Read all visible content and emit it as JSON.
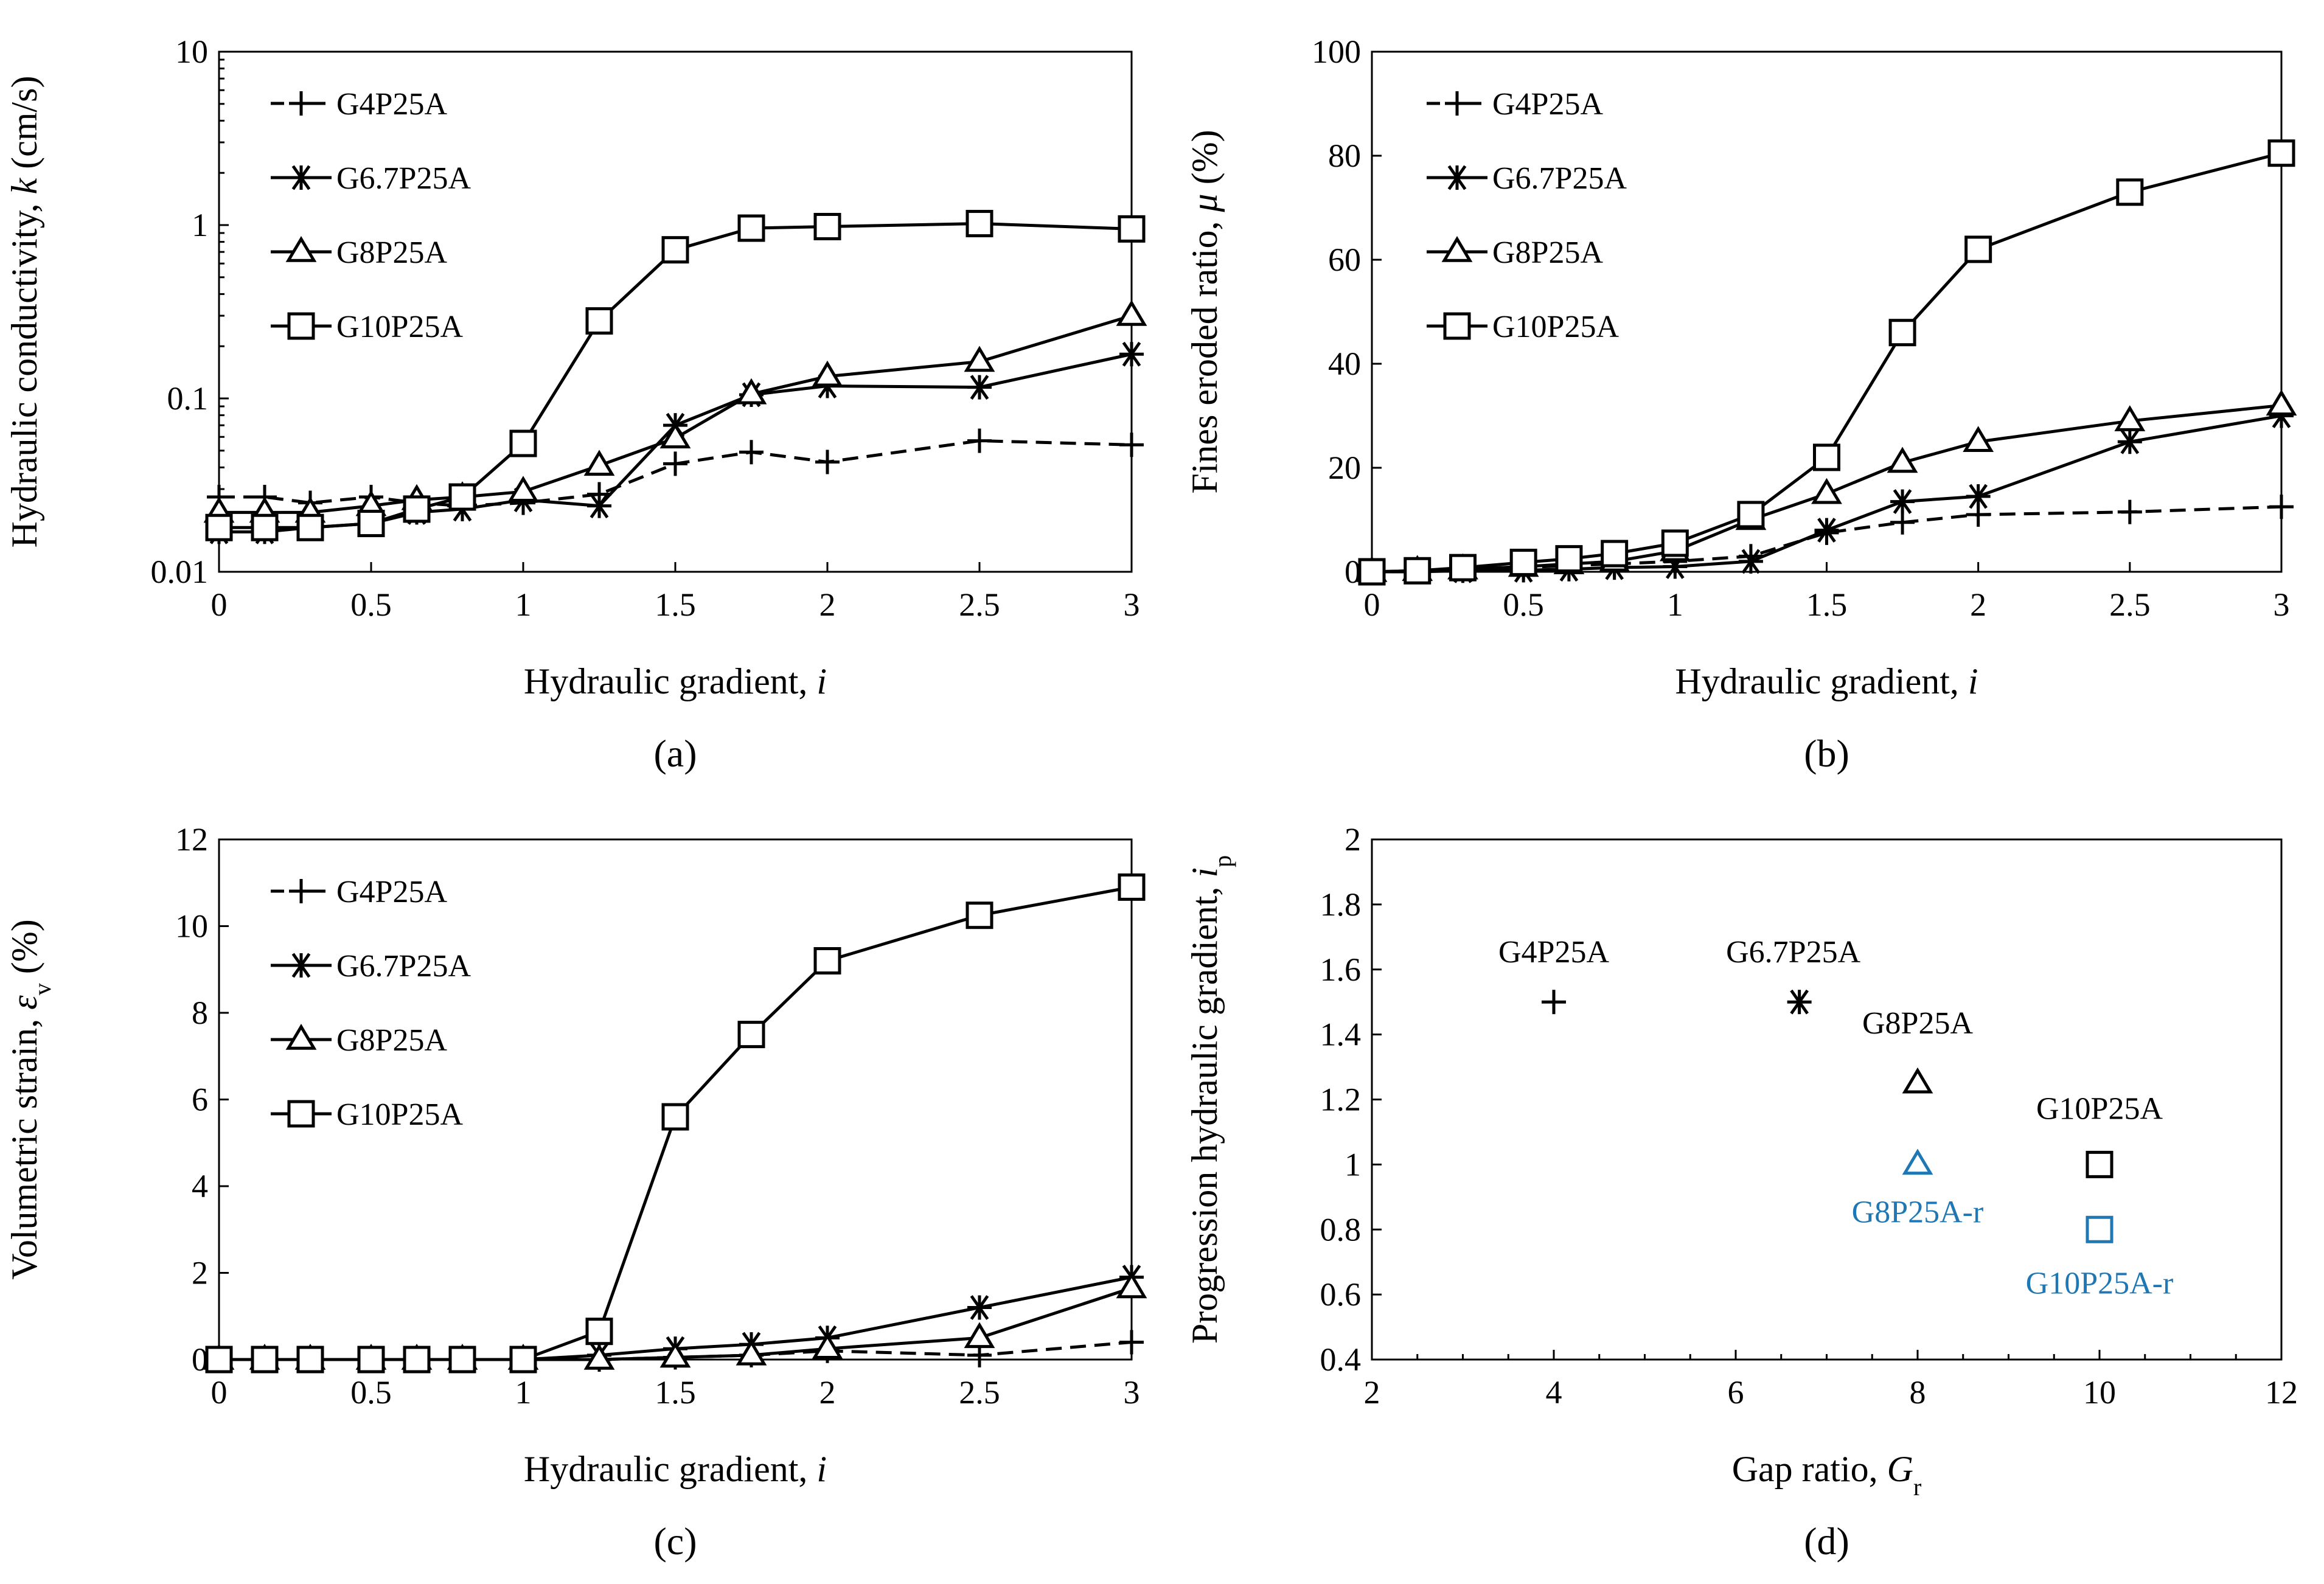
{
  "chart_data": [
    {
      "type": "line",
      "panel_label": "(a)",
      "xlabel": "Hydraulic gradient, ",
      "xlabel_italic": "i",
      "ylabel": "Hydraulic conductivity, ",
      "ylabel_italic": "k",
      "ylabel_suffix": " (cm/s)",
      "yscale": "log",
      "xlim": [
        0,
        3
      ],
      "ylim": [
        0.01,
        10
      ],
      "xticks": [
        0,
        0.5,
        1,
        1.5,
        2,
        2.5,
        3
      ],
      "xtick_labels": [
        "0",
        "0.5",
        "1",
        "1.5",
        "2",
        "2.5",
        "3"
      ],
      "yticks": [
        0.01,
        0.1,
        1,
        10
      ],
      "ytick_labels": [
        "0.01",
        "0.1",
        "1",
        "10"
      ],
      "series": [
        {
          "name": "G4P25A",
          "marker": "plus",
          "dash": "dash",
          "x": [
            0,
            0.15,
            0.3,
            0.5,
            0.65,
            0.8,
            1.0,
            1.25,
            1.5,
            1.75,
            2.0,
            2.5,
            3.0
          ],
          "y": [
            0.027,
            0.027,
            0.025,
            0.027,
            0.025,
            0.024,
            0.025,
            0.028,
            0.042,
            0.049,
            0.043,
            0.057,
            0.054
          ]
        },
        {
          "name": "G6.7P25A",
          "marker": "asterisk",
          "dash": "solid",
          "x": [
            0,
            0.15,
            0.3,
            0.5,
            0.65,
            0.8,
            1.0,
            1.25,
            1.5,
            1.75,
            2.0,
            2.5,
            3.0
          ],
          "y": [
            0.017,
            0.017,
            0.018,
            0.019,
            0.022,
            0.023,
            0.026,
            0.024,
            0.07,
            0.105,
            0.118,
            0.116,
            0.18
          ]
        },
        {
          "name": "G8P25A",
          "marker": "triangle",
          "dash": "solid",
          "x": [
            0,
            0.15,
            0.3,
            0.5,
            0.65,
            0.8,
            1.0,
            1.25,
            1.5,
            1.75,
            2.0,
            2.5,
            3.0
          ],
          "y": [
            0.022,
            0.022,
            0.022,
            0.024,
            0.026,
            0.027,
            0.029,
            0.041,
            0.059,
            0.106,
            0.134,
            0.163,
            0.3
          ]
        },
        {
          "name": "G10P25A",
          "marker": "square",
          "dash": "solid",
          "x": [
            0,
            0.15,
            0.3,
            0.5,
            0.65,
            0.8,
            1.0,
            1.25,
            1.5,
            1.75,
            2.0,
            2.5,
            3.0
          ],
          "y": [
            0.018,
            0.018,
            0.018,
            0.019,
            0.023,
            0.027,
            0.055,
            0.28,
            0.72,
            0.96,
            0.98,
            1.02,
            0.95
          ]
        }
      ]
    },
    {
      "type": "line",
      "panel_label": "(b)",
      "xlabel": "Hydraulic gradient, ",
      "xlabel_italic": "i",
      "ylabel": "Fines eroded ratio, ",
      "ylabel_italic": "μ",
      "ylabel_suffix": " (%)",
      "yscale": "linear",
      "xlim": [
        0,
        3
      ],
      "ylim": [
        0,
        100
      ],
      "xticks": [
        0,
        0.5,
        1,
        1.5,
        2,
        2.5,
        3
      ],
      "xtick_labels": [
        "0",
        "0.5",
        "1",
        "1.5",
        "2",
        "2.5",
        "3"
      ],
      "yticks": [
        0,
        20,
        40,
        60,
        80,
        100
      ],
      "ytick_labels": [
        "0",
        "20",
        "40",
        "60",
        "80",
        "100"
      ],
      "series": [
        {
          "name": "G4P25A",
          "marker": "plus",
          "dash": "dash",
          "x": [
            0,
            0.15,
            0.3,
            0.5,
            0.65,
            0.8,
            1.0,
            1.25,
            1.5,
            1.75,
            2.0,
            2.5,
            3.0
          ],
          "y": [
            0,
            0.2,
            0.3,
            0.8,
            1.2,
            1.5,
            2.0,
            3.0,
            7.5,
            9.5,
            11,
            11.5,
            12.5
          ]
        },
        {
          "name": "G6.7P25A",
          "marker": "asterisk",
          "dash": "solid",
          "x": [
            0,
            0.15,
            0.3,
            0.5,
            0.65,
            0.8,
            1.0,
            1.25,
            1.5,
            1.75,
            2.0,
            2.5,
            3.0
          ],
          "y": [
            0,
            0,
            0.2,
            0.3,
            0.5,
            0.8,
            1.0,
            2.0,
            8.0,
            13.5,
            14.5,
            25,
            30
          ]
        },
        {
          "name": "G8P25A",
          "marker": "triangle",
          "dash": "solid",
          "x": [
            0,
            0.15,
            0.3,
            0.5,
            0.65,
            0.8,
            1.0,
            1.25,
            1.5,
            1.75,
            2.0,
            2.5,
            3.0
          ],
          "y": [
            0,
            0.2,
            0.5,
            1.0,
            1.5,
            2.0,
            4.0,
            10,
            15,
            21,
            25,
            29,
            32
          ]
        },
        {
          "name": "G10P25A",
          "marker": "square",
          "dash": "solid",
          "x": [
            0,
            0.15,
            0.3,
            0.5,
            0.65,
            0.8,
            1.0,
            1.25,
            1.5,
            1.75,
            2.0,
            2.5,
            3.0
          ],
          "y": [
            0,
            0.2,
            0.8,
            1.8,
            2.5,
            3.5,
            5.5,
            11,
            22,
            46,
            62,
            73,
            80.5
          ]
        }
      ]
    },
    {
      "type": "line",
      "panel_label": "(c)",
      "xlabel": "Hydraulic gradient, ",
      "xlabel_italic": "i",
      "ylabel": "Volumetric strain, ",
      "ylabel_italic": "ε",
      "ylabel_sub": "v",
      "ylabel_suffix": " (%)",
      "yscale": "linear",
      "xlim": [
        0,
        3
      ],
      "ylim": [
        0,
        12
      ],
      "xticks": [
        0,
        0.5,
        1,
        1.5,
        2,
        2.5,
        3
      ],
      "xtick_labels": [
        "0",
        "0.5",
        "1",
        "1.5",
        "2",
        "2.5",
        "3"
      ],
      "yticks": [
        0,
        2,
        4,
        6,
        8,
        10,
        12
      ],
      "ytick_labels": [
        "0",
        "2",
        "4",
        "6",
        "8",
        "10",
        "12"
      ],
      "series": [
        {
          "name": "G4P25A",
          "marker": "plus",
          "dash": "dash",
          "x": [
            0,
            0.15,
            0.3,
            0.5,
            0.65,
            0.8,
            1.0,
            1.25,
            1.5,
            1.75,
            2.0,
            2.5,
            3.0
          ],
          "y": [
            0,
            0,
            0,
            0,
            0,
            0,
            0,
            0,
            0.05,
            0.1,
            0.2,
            0.1,
            0.4
          ]
        },
        {
          "name": "G6.7P25A",
          "marker": "asterisk",
          "dash": "solid",
          "x": [
            0,
            0.15,
            0.3,
            0.5,
            0.65,
            0.8,
            1.0,
            1.25,
            1.5,
            1.75,
            2.0,
            2.5,
            3.0
          ],
          "y": [
            0,
            0,
            0,
            0,
            0,
            0,
            0,
            0.1,
            0.25,
            0.35,
            0.5,
            1.2,
            1.9
          ]
        },
        {
          "name": "G8P25A",
          "marker": "triangle",
          "dash": "solid",
          "x": [
            0,
            0.15,
            0.3,
            0.5,
            0.65,
            0.8,
            1.0,
            1.25,
            1.5,
            1.75,
            2.0,
            2.5,
            3.0
          ],
          "y": [
            0,
            0,
            0,
            0,
            0,
            0,
            0,
            0,
            0.05,
            0.1,
            0.25,
            0.5,
            1.65
          ]
        },
        {
          "name": "G10P25A",
          "marker": "square",
          "dash": "solid",
          "x": [
            0,
            0.15,
            0.3,
            0.5,
            0.65,
            0.8,
            1.0,
            1.25,
            1.5,
            1.75,
            2.0,
            2.5,
            3.0
          ],
          "y": [
            0,
            0,
            0,
            0,
            0,
            0,
            0,
            0.65,
            5.6,
            7.5,
            9.2,
            10.25,
            10.9
          ]
        }
      ]
    },
    {
      "type": "scatter",
      "panel_label": "(d)",
      "xlabel": "Gap ratio, ",
      "xlabel_italic": "G",
      "xlabel_sub": "r",
      "ylabel": "Progression hydraulic gradient, ",
      "ylabel_italic": "i",
      "ylabel_sub": "p",
      "yscale": "linear",
      "xlim": [
        2,
        12
      ],
      "ylim": [
        0.4,
        2
      ],
      "xticks": [
        2,
        4,
        6,
        8,
        10,
        12
      ],
      "xtick_labels": [
        "2",
        "4",
        "6",
        "8",
        "10",
        "12"
      ],
      "yticks": [
        0.4,
        0.6,
        0.8,
        1.0,
        1.2,
        1.4,
        1.6,
        1.8,
        2.0
      ],
      "ytick_labels": [
        "0.4",
        "0.6",
        "0.8",
        "1",
        "1.2",
        "1.4",
        "1.6",
        "1.8",
        "2"
      ],
      "points": [
        {
          "name": "G4P25A",
          "marker": "plus",
          "color": "#000000",
          "x": 4,
          "y": 1.5
        },
        {
          "name": "G6.7P25A",
          "marker": "asterisk",
          "color": "#000000",
          "x": 6.7,
          "y": 1.5
        },
        {
          "name": "G8P25A",
          "marker": "triangle",
          "color": "#000000",
          "x": 8,
          "y": 1.25
        },
        {
          "name": "G8P25A-r",
          "marker": "triangle",
          "color": "#1f77b4",
          "x": 8,
          "y": 1.0
        },
        {
          "name": "G10P25A",
          "marker": "square",
          "color": "#000000",
          "x": 10,
          "y": 1.0
        },
        {
          "name": "G10P25A-r",
          "marker": "square",
          "color": "#1f77b4",
          "x": 10,
          "y": 0.8
        }
      ]
    }
  ]
}
